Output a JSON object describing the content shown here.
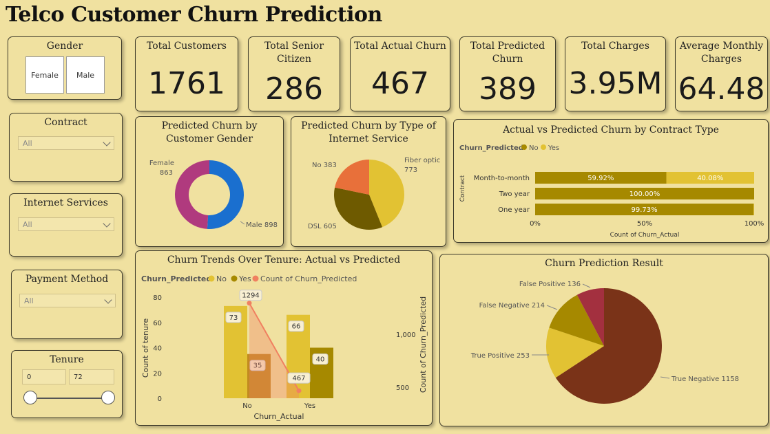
{
  "title": "Telco Customer Churn Prediction",
  "colors": {
    "bg": "#f0e1a0",
    "no_dark": "#a68900",
    "yes_light": "#e2c233",
    "count_line": "#f08060"
  },
  "slicers": {
    "gender": {
      "title": "Gender",
      "options": [
        "Female",
        "Male"
      ]
    },
    "contract": {
      "title": "Contract",
      "value": "All"
    },
    "internet": {
      "title": "Internet Services",
      "value": "All"
    },
    "payment": {
      "title": "Payment Method",
      "value": "All"
    },
    "tenure": {
      "title": "Tenure",
      "min": "0",
      "max": "72"
    }
  },
  "kpis": [
    {
      "label": "Total Customers",
      "value": "1761"
    },
    {
      "label": "Total Senior Citizen",
      "value": "286"
    },
    {
      "label": "Total Actual Churn",
      "value": "467"
    },
    {
      "label": "Total Predicted Churn",
      "value": "389"
    },
    {
      "label": "Total Charges",
      "value": "3.95M"
    },
    {
      "label": "Average Monthly Charges",
      "value": "64.48"
    }
  ],
  "chart_data": [
    {
      "type": "pie",
      "title": "Predicted Churn by Customer Gender",
      "donut": true,
      "slices": [
        {
          "label": "Female",
          "value": 863,
          "color": "#b03a7e"
        },
        {
          "label": "Male",
          "value": 898,
          "color": "#1a6fcf"
        }
      ]
    },
    {
      "type": "pie",
      "title": "Predicted Churn by Type of Internet Service",
      "slices": [
        {
          "label": "Fiber optic",
          "value": 773,
          "color": "#e2c233"
        },
        {
          "label": "DSL",
          "value": 605,
          "color": "#6e5a00"
        },
        {
          "label": "No",
          "value": 383,
          "color": "#e8703a"
        }
      ]
    },
    {
      "type": "bar",
      "orientation": "horizontal",
      "stacked_percent": true,
      "title": "Actual vs Predicted Churn by Contract Type",
      "legend_title": "Churn_Predicted",
      "categories": [
        "Month-to-month",
        "Two year",
        "One year"
      ],
      "series": [
        {
          "name": "No",
          "values": [
            59.92,
            100.0,
            99.73
          ]
        },
        {
          "name": "Yes",
          "values": [
            40.08,
            0,
            0.27
          ]
        }
      ],
      "data_labels": [
        [
          "59.92%",
          "40.08%"
        ],
        [
          "100.00%",
          ""
        ],
        [
          "99.73%",
          ""
        ]
      ],
      "xlabel": "Count of Churn_Actual",
      "ylabel": "Contract",
      "xticks": [
        "0%",
        "50%",
        "100%"
      ]
    },
    {
      "type": "bar",
      "title": "Churn Trends Over Tenure: Actual vs Predicted",
      "legend_title": "Churn_Predicted",
      "legend": [
        "No",
        "Yes",
        "Count of Churn_Predicted"
      ],
      "categories": [
        "No",
        "Yes"
      ],
      "series": [
        {
          "name": "No",
          "values": [
            73,
            66
          ]
        },
        {
          "name": "Yes",
          "values": [
            35,
            40
          ]
        }
      ],
      "line": {
        "name": "Count of Churn_Predicted",
        "values": [
          1294,
          467
        ]
      },
      "xlabel": "Churn_Actual",
      "ylabel": "Count of tenure",
      "y2label": "Count of Churn_Predicted",
      "yticks": [
        "0",
        "20",
        "40",
        "60",
        "80"
      ],
      "y2ticks": [
        "500",
        "1,000"
      ],
      "ylim": [
        0,
        80
      ]
    },
    {
      "type": "pie",
      "title": "Churn Prediction Result",
      "slices": [
        {
          "label": "True Negative",
          "value": 1158,
          "color": "#7a3318"
        },
        {
          "label": "True Positive",
          "value": 253,
          "color": "#e2c233"
        },
        {
          "label": "False Negative",
          "value": 214,
          "color": "#a68900"
        },
        {
          "label": "False Positive",
          "value": 136,
          "color": "#a3303f"
        }
      ]
    }
  ]
}
